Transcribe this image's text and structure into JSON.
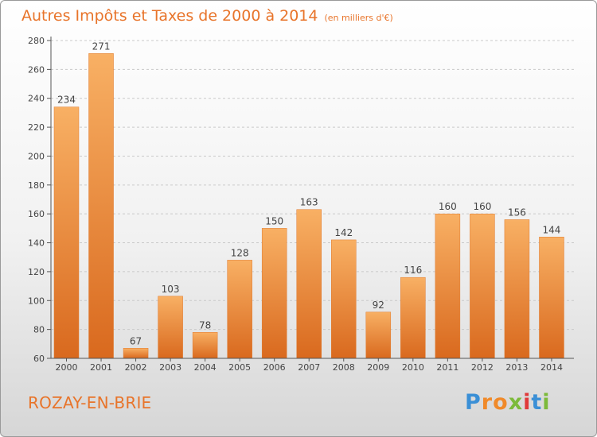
{
  "title": {
    "main": "Autres Impôts et Taxes de 2000 à 2014",
    "unit": "(en milliers d'€)"
  },
  "commune": "ROZAY-EN-BRIE",
  "logo": "Proxiti",
  "colors": {
    "title": "#e8742a",
    "bar_light": "#f7a85a",
    "bar_dark": "#d8691f"
  },
  "chart_data": {
    "type": "bar",
    "categories": [
      "2000",
      "2001",
      "2002",
      "2003",
      "2004",
      "2005",
      "2006",
      "2007",
      "2008",
      "2009",
      "2010",
      "2011",
      "2012",
      "2013",
      "2014"
    ],
    "values": [
      234,
      271,
      67,
      103,
      78,
      128,
      150,
      163,
      142,
      92,
      116,
      160,
      160,
      156,
      144
    ],
    "yticks": [
      60,
      80,
      100,
      120,
      140,
      160,
      180,
      200,
      220,
      240,
      260,
      280
    ],
    "ylim": [
      60,
      280
    ],
    "grid": true
  }
}
